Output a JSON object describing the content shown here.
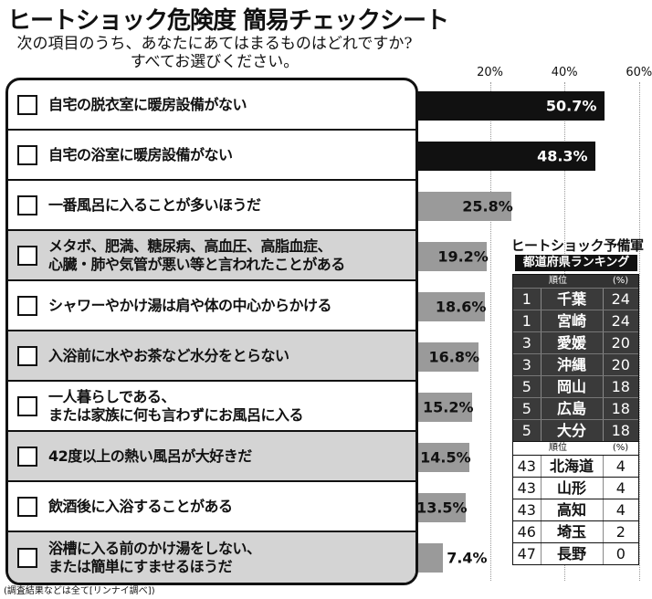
{
  "title": "ヒートショック危険度 簡易チェックシート",
  "subtitle": [
    "次の項目のうち、あなたにあてはまるものはどれですか?",
    "すべてお選びください。"
  ],
  "footnote": "(調査結果などは全て[リンナイ調べ])",
  "chart_data": {
    "type": "bar",
    "orientation": "horizontal",
    "value_unit": "%",
    "x_ticks": [
      "20%",
      "40%",
      "60%"
    ],
    "x_tick_values": [
      20,
      40,
      60
    ],
    "xlim": [
      0,
      60
    ],
    "grid": true,
    "categories": [
      "自宅の脱衣室に暖房設備がない",
      "自宅の浴室に暖房設備がない",
      "一番風呂に入ることが多いほうだ",
      "メタボ、肥満、糖尿病、高血圧、高脂血症、\n心臓・肺や気管が悪い等と言われたことがある",
      "シャワーやかけ湯は肩や体の中心からかける",
      "入浴前に水やお茶など水分をとらない",
      "一人暮らしである、\nまたは家族に何も言わずにお風呂に入る",
      "42度以上の熱い風呂が大好きだ",
      "飲酒後に入浴することがある",
      "浴槽に入る前のかけ湯をしない、\nまたは簡単にすませるほうだ"
    ],
    "values": [
      50.7,
      48.3,
      25.8,
      19.2,
      18.6,
      16.8,
      15.2,
      14.5,
      13.5,
      7.4
    ],
    "value_labels": [
      "50.7%",
      "48.3%",
      "25.8%",
      "19.2%",
      "18.6%",
      "16.8%",
      "15.2%",
      "14.5%",
      "13.5%",
      "7.4%"
    ],
    "bar_colors": [
      "#111111",
      "#111111",
      "#9a9a9a",
      "#9a9a9a",
      "#9a9a9a",
      "#9a9a9a",
      "#9a9a9a",
      "#9a9a9a",
      "#9a9a9a",
      "#9a9a9a"
    ]
  },
  "ranking": {
    "title": "ヒートショック予備軍",
    "subtitle": "都道府県ランキング",
    "header_rank": "順位",
    "header_unit": "(%)",
    "top": [
      {
        "rank": "1",
        "prefecture": "千葉",
        "value": "24"
      },
      {
        "rank": "1",
        "prefecture": "宮崎",
        "value": "24"
      },
      {
        "rank": "3",
        "prefecture": "愛媛",
        "value": "20"
      },
      {
        "rank": "3",
        "prefecture": "沖縄",
        "value": "20"
      },
      {
        "rank": "5",
        "prefecture": "岡山",
        "value": "18"
      },
      {
        "rank": "5",
        "prefecture": "広島",
        "value": "18"
      },
      {
        "rank": "5",
        "prefecture": "大分",
        "value": "18"
      }
    ],
    "bottom": [
      {
        "rank": "43",
        "prefecture": "北海道",
        "value": "4"
      },
      {
        "rank": "43",
        "prefecture": "山形",
        "value": "4"
      },
      {
        "rank": "43",
        "prefecture": "高知",
        "value": "4"
      },
      {
        "rank": "46",
        "prefecture": "埼玉",
        "value": "2"
      },
      {
        "rank": "47",
        "prefecture": "長野",
        "value": "0"
      }
    ],
    "colors": {
      "top_rows": "#3a3a3a",
      "bottom_rows": "#ffffff"
    }
  }
}
